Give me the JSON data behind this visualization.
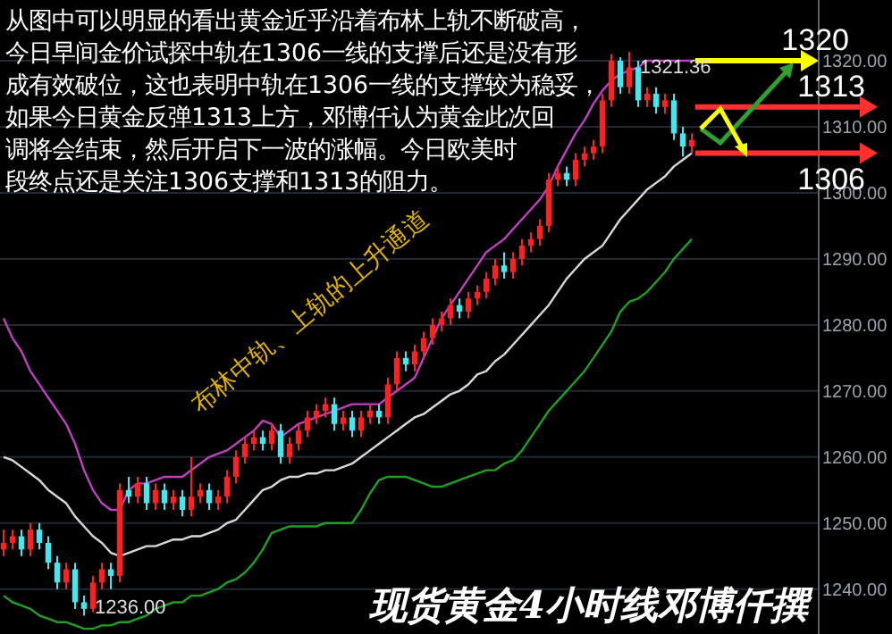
{
  "chart_data": {
    "type": "candlestick",
    "title": null,
    "categories": [
      null,
      null,
      null,
      null,
      null,
      null,
      null,
      null,
      null,
      null,
      null,
      null,
      null,
      null,
      null,
      null,
      null,
      null,
      null,
      null,
      null,
      null,
      null,
      null,
      null,
      null,
      null,
      null,
      null,
      null,
      null,
      null,
      null,
      null,
      null,
      null,
      null,
      null,
      null,
      null,
      null,
      null,
      null,
      null,
      null,
      null,
      null,
      null,
      null,
      null,
      null,
      null,
      null,
      null,
      null,
      null,
      null,
      null,
      null,
      null,
      null,
      null,
      null,
      null,
      null,
      null,
      null,
      null,
      null,
      null,
      null,
      null,
      null,
      null,
      null,
      null,
      null,
      null
    ],
    "ohlc": [
      [
        1246,
        1249,
        1245,
        1247
      ],
      [
        1247,
        1249,
        1246,
        1248
      ],
      [
        1248,
        1249,
        1245,
        1246
      ],
      [
        1246,
        1250,
        1245,
        1249
      ],
      [
        1249,
        1250,
        1246,
        1247
      ],
      [
        1247,
        1248,
        1243,
        1244
      ],
      [
        1244,
        1245,
        1240,
        1241
      ],
      [
        1241,
        1244,
        1240,
        1243
      ],
      [
        1243,
        1244,
        1237,
        1238
      ],
      [
        1238,
        1239,
        1236,
        1237
      ],
      [
        1237,
        1242,
        1236.5,
        1241
      ],
      [
        1241,
        1244,
        1240,
        1243
      ],
      [
        1243,
        1244,
        1240,
        1242
      ],
      [
        1242,
        1256,
        1241,
        1255
      ],
      [
        1255,
        1257,
        1253,
        1254
      ],
      [
        1254,
        1257,
        1253,
        1256
      ],
      [
        1256,
        1257,
        1252,
        1253
      ],
      [
        1253,
        1256,
        1252,
        1255
      ],
      [
        1255,
        1256,
        1252,
        1253
      ],
      [
        1253,
        1255,
        1252,
        1254
      ],
      [
        1254,
        1255,
        1251,
        1252
      ],
      [
        1252,
        1260,
        1251,
        1254
      ],
      [
        1254,
        1256,
        1253,
        1255
      ],
      [
        1255,
        1256,
        1252,
        1253
      ],
      [
        1253,
        1255,
        1252,
        1254
      ],
      [
        1254,
        1258,
        1253,
        1257
      ],
      [
        1257,
        1261,
        1256,
        1260
      ],
      [
        1260,
        1263,
        1259,
        1262
      ],
      [
        1262,
        1264,
        1261,
        1263
      ],
      [
        1263,
        1264,
        1261,
        1262
      ],
      [
        1262,
        1265,
        1261,
        1264
      ],
      [
        1264,
        1265,
        1259,
        1260
      ],
      [
        1260,
        1263,
        1259,
        1262
      ],
      [
        1262,
        1265,
        1261,
        1264
      ],
      [
        1264,
        1267,
        1263,
        1266
      ],
      [
        1266,
        1268,
        1265,
        1267
      ],
      [
        1267,
        1269,
        1266,
        1268
      ],
      [
        1268,
        1269,
        1264,
        1265
      ],
      [
        1265,
        1267,
        1264,
        1266
      ],
      [
        1266,
        1267,
        1263,
        1264
      ],
      [
        1264,
        1267,
        1263,
        1266
      ],
      [
        1266,
        1268,
        1265,
        1267
      ],
      [
        1267,
        1268,
        1265,
        1266
      ],
      [
        1266,
        1272,
        1265,
        1271
      ],
      [
        1271,
        1276,
        1270,
        1275
      ],
      [
        1275,
        1276,
        1273,
        1274
      ],
      [
        1274,
        1277,
        1273,
        1276
      ],
      [
        1276,
        1279,
        1275,
        1278
      ],
      [
        1278,
        1281,
        1277,
        1280
      ],
      [
        1280,
        1282,
        1279,
        1281
      ],
      [
        1281,
        1284,
        1280,
        1283
      ],
      [
        1283,
        1284,
        1281,
        1282
      ],
      [
        1282,
        1285,
        1281,
        1284
      ],
      [
        1284,
        1286,
        1283,
        1285
      ],
      [
        1285,
        1288,
        1284,
        1287
      ],
      [
        1287,
        1290,
        1286,
        1289
      ],
      [
        1289,
        1291,
        1287,
        1288
      ],
      [
        1288,
        1291,
        1287,
        1290
      ],
      [
        1290,
        1293,
        1289,
        1292
      ],
      [
        1292,
        1294,
        1291,
        1293
      ],
      [
        1293,
        1296,
        1292,
        1295
      ],
      [
        1295,
        1303,
        1294,
        1302
      ],
      [
        1302,
        1304,
        1301,
        1303
      ],
      [
        1303,
        1304,
        1301,
        1302
      ],
      [
        1302,
        1306,
        1301,
        1305
      ],
      [
        1305,
        1307,
        1304,
        1306
      ],
      [
        1306,
        1308,
        1305,
        1307
      ],
      [
        1307,
        1315,
        1306,
        1314
      ],
      [
        1314,
        1321,
        1313,
        1320
      ],
      [
        1320,
        1320.5,
        1315,
        1316
      ],
      [
        1316,
        1321.36,
        1315,
        1319
      ],
      [
        1319,
        1320,
        1313,
        1314
      ],
      [
        1314,
        1316,
        1313,
        1315
      ],
      [
        1315,
        1316,
        1312,
        1313
      ],
      [
        1313,
        1315,
        1312,
        1314
      ],
      [
        1314,
        1315,
        1308,
        1309
      ],
      [
        1309,
        1310,
        1305.5,
        1307
      ],
      [
        1307,
        1309,
        1306,
        1308
      ]
    ],
    "colors": [
      "#ff2020",
      "#ff2020",
      "#40e8f0",
      "#ff2020",
      "#40e8f0",
      "#40e8f0",
      "#40e8f0",
      "#ff2020",
      "#40e8f0",
      "#40e8f0",
      "#ff2020",
      "#ff2020",
      "#40e8f0",
      "#ff2020",
      "#40e8f0",
      "#ff2020",
      "#40e8f0",
      "#ff2020",
      "#40e8f0",
      "#ff2020",
      "#40e8f0",
      "#ff2020",
      "#ff2020",
      "#40e8f0",
      "#ff2020",
      "#ff2020",
      "#ff2020",
      "#ff2020",
      "#ff2020",
      "#40e8f0",
      "#ff2020",
      "#40e8f0",
      "#ff2020",
      "#ff2020",
      "#ff2020",
      "#ff2020",
      "#ff2020",
      "#40e8f0",
      "#ff2020",
      "#40e8f0",
      "#ff2020",
      "#ff2020",
      "#40e8f0",
      "#ff2020",
      "#ff2020",
      "#40e8f0",
      "#ff2020",
      "#ff2020",
      "#ff2020",
      "#ff2020",
      "#ff2020",
      "#40e8f0",
      "#ff2020",
      "#ff2020",
      "#ff2020",
      "#ff2020",
      "#40e8f0",
      "#ff2020",
      "#ff2020",
      "#ff2020",
      "#ff2020",
      "#ff2020",
      "#ff2020",
      "#40e8f0",
      "#ff2020",
      "#ff2020",
      "#ff2020",
      "#ff2020",
      "#ff2020",
      "#40e8f0",
      "#ff2020",
      "#40e8f0",
      "#ff2020",
      "#40e8f0",
      "#ff2020",
      "#40e8f0",
      "#40e8f0",
      "#ff2020"
    ],
    "series": [
      {
        "type": "line",
        "color": "#c040c0",
        "values": [
          1281,
          1278,
          1276,
          1273,
          1271,
          1269,
          1267,
          1265,
          1262,
          1258,
          1255,
          1253,
          1252,
          1252,
          1255,
          1256,
          1256,
          1256.5,
          1257,
          1257,
          1257,
          1258,
          1259,
          1260,
          1260.5,
          1261,
          1262,
          1263,
          1264,
          1265.5,
          1265,
          1263,
          1264,
          1265,
          1265.5,
          1266,
          1266.5,
          1267,
          1267.5,
          1268,
          1268,
          1268,
          1268,
          1269,
          1270,
          1271,
          1272,
          1275,
          1278,
          1281,
          1283,
          1285,
          1287,
          1289,
          1291,
          1292,
          1293,
          1294.5,
          1296,
          1297.5,
          1299,
          1301,
          1304,
          1306.5,
          1309,
          1311,
          1313.5,
          1315.5,
          1317,
          1318,
          1318.5,
          1319,
          1320,
          1320,
          1320,
          1320,
          1320,
          1320
        ]
      },
      {
        "type": "line",
        "color": "#d8d8d8",
        "values": [
          1260,
          1259.5,
          1258.5,
          1257.5,
          1256.5,
          1255,
          1254,
          1253,
          1251,
          1249.5,
          1248,
          1247,
          1245.5,
          1245,
          1245.5,
          1246,
          1246.5,
          1246.5,
          1247,
          1247.5,
          1247.5,
          1248,
          1248,
          1248.5,
          1249,
          1250,
          1250.5,
          1252,
          1253.5,
          1255,
          1255.5,
          1256.5,
          1257,
          1257,
          1257.5,
          1257.5,
          1258,
          1258,
          1258.5,
          1259,
          1260,
          1261,
          1262,
          1263,
          1264,
          1265,
          1266,
          1266.5,
          1267.5,
          1268.5,
          1269.5,
          1270,
          1271,
          1272.5,
          1273,
          1274.5,
          1275.5,
          1277,
          1278.5,
          1280,
          1281.5,
          1283,
          1285,
          1287,
          1288.5,
          1290,
          1291,
          1292,
          1294,
          1296,
          1297.5,
          1299,
          1300.5,
          1301.5,
          1302.5,
          1304,
          1305,
          1306
        ]
      },
      {
        "type": "line",
        "color": "#20a020",
        "values": [
          1239,
          1238,
          1237.5,
          1237,
          1236,
          1235.5,
          1235,
          1235,
          1234.5,
          1234,
          1234,
          1234.5,
          1234.5,
          1235,
          1235,
          1235.5,
          1236,
          1237,
          1237.5,
          1238,
          1238,
          1239,
          1239,
          1239.5,
          1240,
          1241,
          1241.5,
          1242.5,
          1244,
          1246,
          1248.5,
          1249,
          1249.5,
          1249.5,
          1249.5,
          1249.5,
          1250,
          1250,
          1250,
          1250,
          1252,
          1254.5,
          1256.5,
          1257,
          1257,
          1257,
          1256.5,
          1256,
          1255.5,
          1255.5,
          1256,
          1256.5,
          1257,
          1257.5,
          1258,
          1258,
          1259,
          1259.5,
          1261,
          1263,
          1265,
          1267,
          1268.5,
          1270,
          1271.5,
          1273,
          1275,
          1277,
          1279,
          1282,
          1283.5,
          1284,
          1285,
          1286.5,
          1288,
          1290,
          1291.5,
          1293
        ]
      }
    ],
    "ylim": [
      1233.2,
      1329.2
    ],
    "yticks": [
      {
        "value": 1240,
        "label": "1240.00"
      },
      {
        "value": 1250,
        "label": "1250.00"
      },
      {
        "value": 1260,
        "label": "1260.00"
      },
      {
        "value": 1270,
        "label": "1270.00"
      },
      {
        "value": 1280,
        "label": "1280.00"
      },
      {
        "value": 1290,
        "label": "1290.00"
      },
      {
        "value": 1300,
        "label": "1300.00"
      },
      {
        "value": 1310,
        "label": "1310.00"
      },
      {
        "value": 1320,
        "label": "1320.00"
      }
    ],
    "tick_labels": "y",
    "grid": "y",
    "ref_lines": [
      {
        "axis": "y",
        "value": 1320,
        "label": "1320",
        "color": "#ffff00"
      },
      {
        "axis": "y",
        "value": 1313,
        "label": "1313",
        "color": "#ff3030"
      },
      {
        "axis": "y",
        "value": 1306,
        "label": "1306",
        "color": "#ff3030"
      }
    ],
    "annotations": [
      "从图中可以明显的看出黄金近乎沿着布林上轨不断破高，今日早间金价试探中轨在1306一线的支撑后还是没有形成有效破位，这也表明中轨在1306一线的支撑较为稳妥，如果今日黄金反弹1313上方，邓博仟认为黄金此次回调将会结束，然后开启下一波的涨幅。今日欧美时段终点还是关注1306支撑和1313的阻力。",
      "1321.36",
      "1236.00",
      "布林中轨、上轨的上升通道",
      "现货黄金4小时线邓博仟撰"
    ]
  }
}
